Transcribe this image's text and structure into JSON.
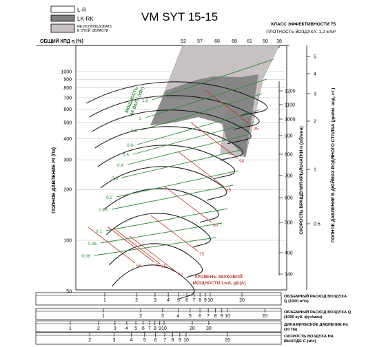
{
  "chart_data": {
    "type": "line",
    "title": "VM SYT 15-15",
    "legend": [
      {
        "label": "L-R",
        "color": "#ffffff"
      },
      {
        "label": "LK-RK",
        "color": "#7f7f7f"
      },
      {
        "label": "НЕ ИСПОЛЬЗОВАТЬ\nВ ЭТОЙ ОБЛАСТИ",
        "color": "#c8c1c1"
      }
    ],
    "efficiency_class": "КЛАСС ЭФФЕКТИВНОСТИ 75",
    "air_density": "ПЛОТНОСТЬ ВОЗДУХА: 1,2 кг/м³",
    "efficiency_axis_label": "ОБЩИЙ КПД η (%)",
    "efficiency_ticks": [
      "52",
      "57",
      "68",
      "68",
      "61",
      "50",
      "38"
    ],
    "ylabel": "ПОЛНОЕ ДАВЛЕНИЕ Pt (Па)",
    "y_scale": "log",
    "ylim": [
      50,
      1300
    ],
    "y_ticks": [
      1000,
      900,
      800,
      700,
      600,
      500,
      400,
      300,
      200,
      100,
      50
    ],
    "right_axis_rpm_label": "СКОРОСТЬ ВРАЩЕНИЯ КРЫЛЬЧАТКИ n (об/мин)",
    "right_axis_rpm_ticks": [
      1200,
      1100,
      1000,
      900,
      800,
      700,
      600,
      500,
      400,
      340
    ],
    "right_axis_inch_label": "ПОЛНОЕ ДАВЛЕНИЕ В ДЮЙМАХ ВОДЯНОГО СТОЛБА (дюйм. вод. ст.)",
    "right_axis_inch_ticks": [
      "5",
      "4",
      "3",
      "2",
      "1",
      "0.5"
    ],
    "power_label": "МОЩНОСТЬ НА ВАЛУ (кВт)",
    "power_values": [
      "1.5",
      "1",
      "0.8",
      "0.6",
      "0.5",
      "0.4",
      "0.3",
      "0.2",
      "0.15",
      "0.1",
      "0.08",
      "0.06"
    ],
    "sound_label": "УРОВЕНЬ ЗВУКОВОЙ МОЩНОСТИ LwA, дБ(A)",
    "sound_values": [
      "95",
      "90",
      "85",
      "80",
      "75",
      "70",
      "65",
      "60",
      "55"
    ],
    "bottom_axes": [
      {
        "label": "ОБЪЕМНЫЙ РАСХОД ВОЗДУХА Q (1000 м³/ч)",
        "ticks": [
          "1",
          "2",
          "3",
          "4",
          "5",
          "6",
          "7",
          "8",
          "9",
          "10",
          "20"
        ]
      },
      {
        "label": "ОБЪЕМНЫЙ РАСХОД ВОЗДУХА Q (1000 куб. фут/мин)",
        "ticks": [
          "1",
          "2",
          "3",
          "4",
          "5",
          "6",
          "7",
          "8",
          "9",
          "10",
          "20"
        ]
      },
      {
        "label": "ДИНАМИЧЕСКОЕ ДАВЛЕНИЕ Pd (10 Па)",
        "ticks": [
          "1",
          "2",
          "3",
          "4",
          "5",
          "6",
          "7",
          "8",
          "9",
          "10",
          "20",
          "30"
        ]
      },
      {
        "label": "СКОРОСТЬ ВОЗДУХА НА ВЫХОДЕ C (м/с)",
        "ticks": [
          "2",
          "3",
          "4",
          "5",
          "6",
          "7",
          "8",
          "9",
          "10",
          "20"
        ]
      }
    ],
    "colors": {
      "rpm_curve": "#1a1a1a",
      "power_line": "#2e8b3a",
      "sound_line": "#c0392b",
      "lkrk_area": "#7f7f7f",
      "forbidden_area": "#c8c1c1"
    }
  }
}
